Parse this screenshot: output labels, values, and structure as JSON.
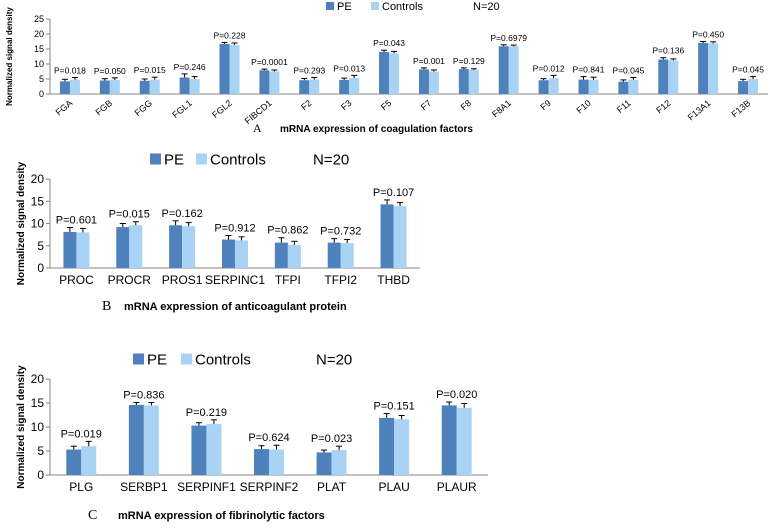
{
  "colors": {
    "pe": "#4f81bd",
    "controls": "#a9d3f5",
    "axis": "#868686",
    "error": "#000000"
  },
  "chart_data": [
    {
      "type": "bar",
      "panel_letter": "A",
      "title": "mRNA expression of coagulation factors",
      "xlabel": "",
      "ylabel": "Normalized signal density",
      "ylim": [
        0,
        25
      ],
      "yticks": [
        "0",
        "5",
        "10",
        "15",
        "20",
        "25"
      ],
      "n_label": "N=20",
      "legend_position": "top",
      "categories": [
        "FGA",
        "FGB",
        "FGG",
        "FGL1",
        "FGL2",
        "FIBCD1",
        "F2",
        "F3",
        "F5",
        "F7",
        "F8",
        "F8A1",
        "F9",
        "F10",
        "F11",
        "F12",
        "F13A1",
        "F13B"
      ],
      "pvalues": [
        "P=0.018",
        "P=0.050",
        "P=0.015",
        "P=0.246",
        "P=0.228",
        "P=0.0001",
        "P=0.293",
        "P=0.013",
        "P=0.043",
        "P=0.001",
        "P=0.129",
        "P=0.6979",
        "P=0.012",
        "P=0.841",
        "P=0.045",
        "P=0.136",
        "P=0.450",
        "P=0.045"
      ],
      "series": [
        {
          "name": "PE",
          "values": [
            4.2,
            4.5,
            4.4,
            5.5,
            16.7,
            7.9,
            4.6,
            4.7,
            14.0,
            8.2,
            8.3,
            15.9,
            4.6,
            4.8,
            4.1,
            11.5,
            17.0,
            4.3
          ],
          "errors": [
            0.7,
            0.6,
            0.6,
            1.2,
            0.5,
            0.4,
            0.6,
            0.6,
            0.6,
            0.5,
            0.4,
            0.5,
            0.5,
            1.0,
            0.6,
            0.6,
            0.5,
            0.6
          ]
        },
        {
          "name": "Controls",
          "values": [
            4.8,
            4.7,
            4.8,
            5.0,
            16.4,
            7.5,
            4.8,
            5.3,
            13.6,
            7.5,
            8.0,
            15.9,
            5.3,
            4.7,
            4.7,
            11.2,
            16.9,
            5.0
          ],
          "errors": [
            0.7,
            0.7,
            0.8,
            0.8,
            0.6,
            0.5,
            0.7,
            0.9,
            0.6,
            0.5,
            0.4,
            0.4,
            0.9,
            0.9,
            0.8,
            0.5,
            0.5,
            0.8
          ]
        }
      ]
    },
    {
      "type": "bar",
      "panel_letter": "B",
      "title": "mRNA expression of anticoagulant protein",
      "xlabel": "",
      "ylabel": "Normalized signal density",
      "ylim": [
        0,
        20
      ],
      "yticks": [
        "0",
        "5",
        "10",
        "15",
        "20"
      ],
      "n_label": "N=20",
      "legend_position": "top",
      "categories": [
        "PROC",
        "PROCR",
        "PROS1",
        "SERPINC1",
        "TFPI",
        "TFPI2",
        "THBD"
      ],
      "pvalues": [
        "P=0.601",
        "P=0.015",
        "P=0.162",
        "P=0.912",
        "P=0.862",
        "P=0.732",
        "P=0.107"
      ],
      "series": [
        {
          "name": "PE",
          "values": [
            8.1,
            9.2,
            9.6,
            6.4,
            5.7,
            5.7,
            14.3
          ],
          "errors": [
            1.0,
            0.8,
            1.0,
            0.9,
            1.1,
            0.9,
            1.0
          ]
        },
        {
          "name": "Controls",
          "values": [
            8.0,
            9.6,
            9.4,
            6.2,
            5.2,
            5.6,
            13.9
          ],
          "errors": [
            0.9,
            0.8,
            0.8,
            0.8,
            0.8,
            0.8,
            0.8
          ]
        }
      ]
    },
    {
      "type": "bar",
      "panel_letter": "C",
      "title": "mRNA expression of fibrinolytic factors",
      "xlabel": "",
      "ylabel": "Normalized signal density",
      "ylim": [
        0,
        20
      ],
      "yticks": [
        "0",
        "5",
        "10",
        "15",
        "20"
      ],
      "n_label": "N=20",
      "legend_position": "top",
      "categories": [
        "PLG",
        "SERBP1",
        "SERPINF1",
        "SERPINF2",
        "PLAT",
        "PLAU",
        "PLAUR"
      ],
      "pvalues": [
        "P=0.019",
        "P=0.836",
        "P=0.219",
        "P=0.624",
        "P=0.023",
        "P=0.151",
        "P=0.020"
      ],
      "series": [
        {
          "name": "PE",
          "values": [
            5.3,
            14.6,
            10.3,
            5.4,
            4.7,
            11.9,
            14.5
          ],
          "errors": [
            0.7,
            0.5,
            0.6,
            0.7,
            0.5,
            0.9,
            0.7
          ]
        },
        {
          "name": "Controls",
          "values": [
            6.0,
            14.5,
            10.6,
            5.3,
            5.2,
            11.6,
            14.0
          ],
          "errors": [
            1.0,
            0.6,
            0.9,
            0.9,
            0.8,
            0.8,
            0.9
          ]
        }
      ]
    }
  ]
}
